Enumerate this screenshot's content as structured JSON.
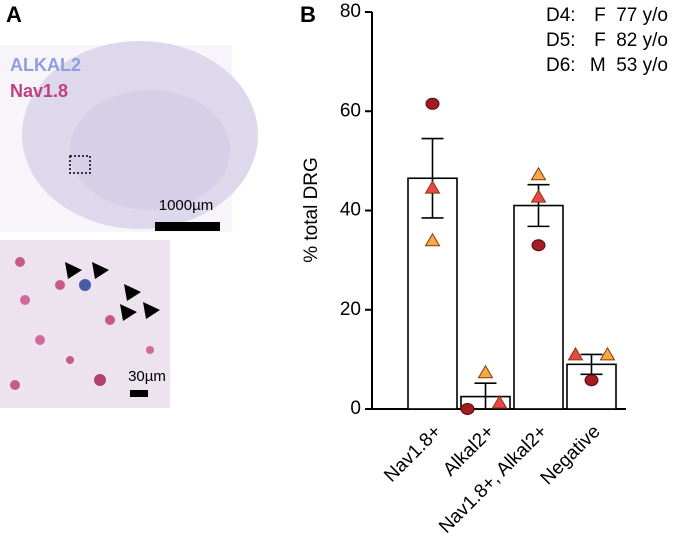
{
  "panel_a": {
    "label": "A",
    "stain_1": "ALKAL2",
    "stain_2": "Nav1.8",
    "scale_top": "1000µm",
    "scale_bottom": "30µm"
  },
  "chart_data": {
    "type": "bar",
    "panel_label": "B",
    "ylabel": "% total DRG",
    "categories": [
      "Nav1.8+",
      "Alkal2+",
      "Nav1.8+, Alkal2+",
      "Negative"
    ],
    "values": [
      46.5,
      2.5,
      41,
      9
    ],
    "errors": [
      8,
      2.7,
      4.2,
      2
    ],
    "color": "#ffffff",
    "ylim": [
      0,
      80
    ],
    "yticks": [
      0,
      20,
      40,
      60,
      80
    ],
    "series": [
      {
        "name": "D4:",
        "description": "F  77 y/o",
        "color": "#e8474f",
        "marker": "triangle",
        "values": [
          44.5,
          1.2,
          42.7,
          10.9
        ]
      },
      {
        "name": "D5:",
        "description": "F  82 y/o",
        "color": "#f5a94a",
        "marker": "triangle",
        "values": [
          33.9,
          7.3,
          47.2,
          10.9
        ]
      },
      {
        "name": "D6:",
        "description": "M  53 y/o",
        "color": "#a31c22",
        "marker": "circle",
        "values": [
          61.5,
          0,
          33,
          5.8
        ]
      }
    ]
  }
}
